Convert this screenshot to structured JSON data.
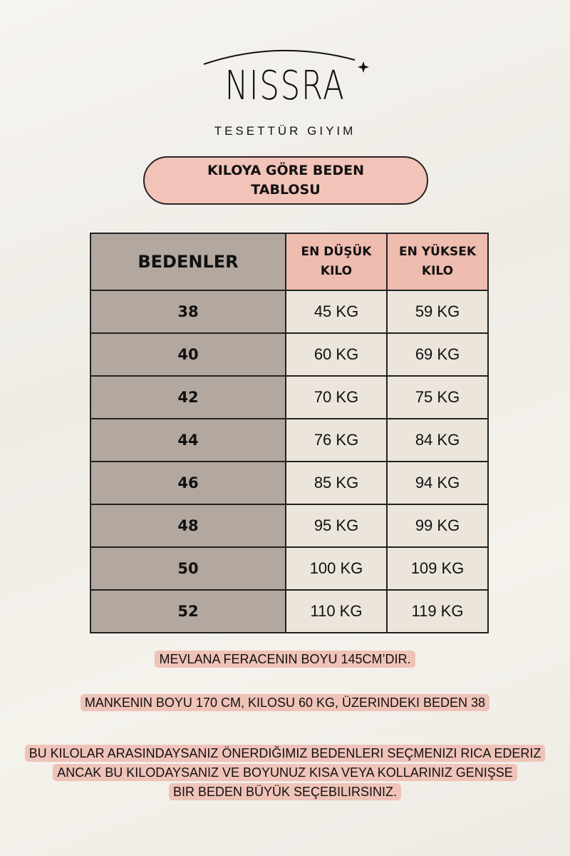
{
  "brand": {
    "name": "NISSRA",
    "tagline": "TESETTÜR GIYIM"
  },
  "title": {
    "line1": "KILOYA GÖRE BEDEN",
    "line2": "TABLOSU"
  },
  "table": {
    "headers": [
      "BEDENLER",
      "EN DÜŞÜK KILO",
      "EN YÜKSEK KILO"
    ],
    "header_lines": {
      "min": [
        "EN DÜŞÜK",
        "KILO"
      ],
      "max": [
        "EN YÜKSEK",
        "KILO"
      ]
    },
    "rows": [
      {
        "size": "38",
        "min": "45 KG",
        "max": "59 KG"
      },
      {
        "size": "40",
        "min": "60 KG",
        "max": "69 KG"
      },
      {
        "size": "42",
        "min": "70 KG",
        "max": "75 KG"
      },
      {
        "size": "44",
        "min": "76 KG",
        "max": "84 KG"
      },
      {
        "size": "46",
        "min": "85 KG",
        "max": "94 KG"
      },
      {
        "size": "48",
        "min": "95 KG",
        "max": "99 KG"
      },
      {
        "size": "50",
        "min": "100 KG",
        "max": "109 KG"
      },
      {
        "size": "52",
        "min": "110 KG",
        "max": "119 KG"
      }
    ]
  },
  "notes": {
    "length": "MEVLANA FERACENIN BOYU 145CM’DIR.",
    "model": "MANKENIN BOYU 170 CM, KILOSU 60 KG, ÜZERINDEKI BEDEN 38",
    "advice": [
      "BU KILOLAR ARASINDAYSANIZ ÖNERDIĞIMIZ BEDENLERI SEÇMENIZI RICA EDERIZ",
      "ANCAK BU KILODAYSANIZ VE BOYUNUZ KISA VEYA KOLLARINIZ GENIŞSE",
      "BIR BEDEN BÜYÜK SEÇEBILIRSINIZ."
    ]
  },
  "colors": {
    "size_col": "#b3a8a0",
    "header_pink": "#efbcb0",
    "value_cell": "#ebe5dc",
    "highlight": "#efc3b8"
  }
}
